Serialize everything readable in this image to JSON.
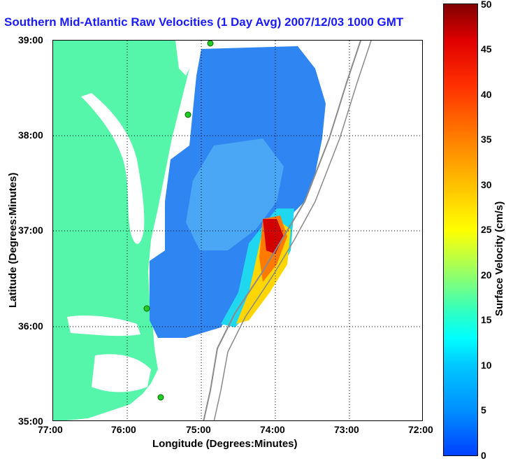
{
  "title": "Southern Mid-Atlantic Raw Velocities (1 Day Avg) 2007/12/03 1000 GMT",
  "axes": {
    "xlabel": "Longitude (Degrees:Minutes)",
    "ylabel": "Latitude (Degrees:Minutes)",
    "x_ticks": [
      "77:00",
      "76:00",
      "75:00",
      "74:00",
      "73:00",
      "72:00"
    ],
    "y_ticks": [
      "39:00",
      "38:00",
      "37:00",
      "36:00",
      "35:00"
    ]
  },
  "colorbar": {
    "label": "Surface Velocity (cm/s)",
    "ticks": [
      "50",
      "45",
      "40",
      "35",
      "30",
      "25",
      "20",
      "15",
      "10",
      "5",
      "0"
    ],
    "range": [
      0,
      50
    ]
  },
  "colors": {
    "land": "#55f5aa",
    "water": "#ffffff",
    "title": "#1a1aff",
    "field_low": "#1e78f0",
    "field_high": "#b00000"
  },
  "map_data": {
    "lon_range": [
      -77,
      -72
    ],
    "lat_range": [
      35,
      39
    ],
    "stations": [
      {
        "lon": -74.88,
        "lat": 38.98
      },
      {
        "lon": -75.17,
        "lat": 38.22
      },
      {
        "lon": -75.72,
        "lat": 36.2
      },
      {
        "lon": -75.52,
        "lat": 35.25
      }
    ]
  }
}
